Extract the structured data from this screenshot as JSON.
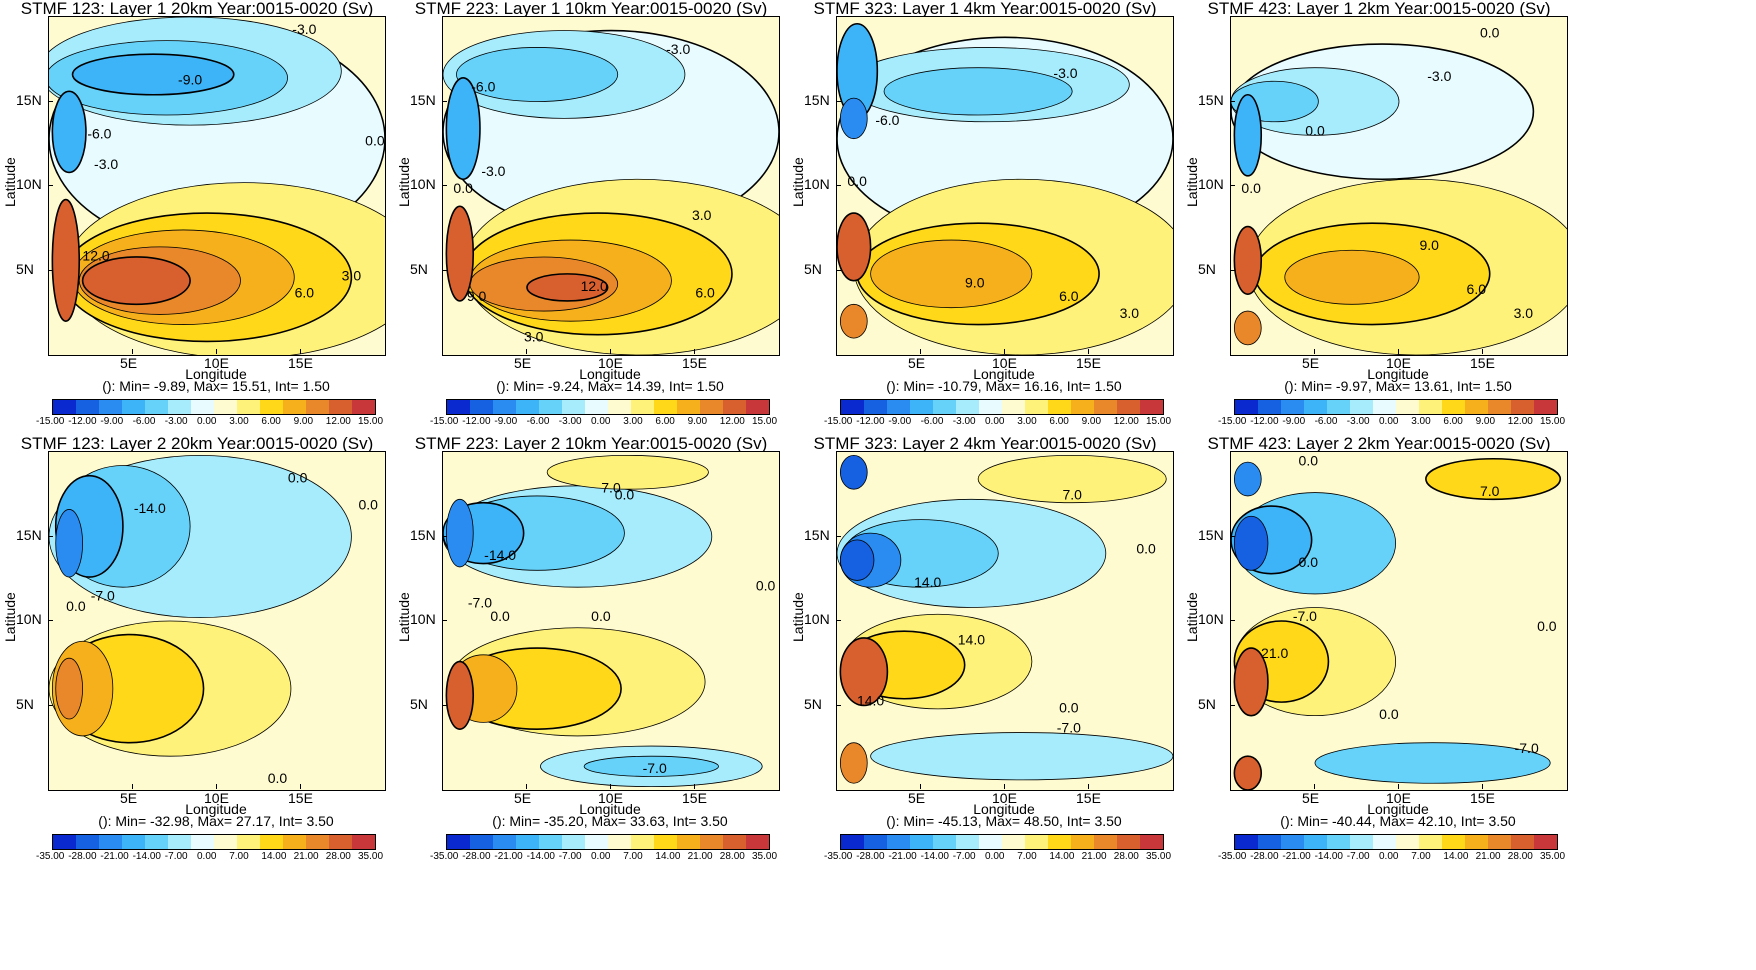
{
  "palette": [
    "#0a2ad0",
    "#1660e2",
    "#2a8cf0",
    "#3eb4f8",
    "#66d2fa",
    "#a6ecfc",
    "#e8fcff",
    "#fffbd0",
    "#fff27a",
    "#ffd81a",
    "#f6b01c",
    "#e8882a",
    "#d8602e",
    "#c8383a"
  ],
  "chart_data": [
    {
      "type": "heatmap",
      "title": "STMF 123: Layer 1 20km Year:0015-0020 (Sv)",
      "xlabel": "Longitude",
      "ylabel": "Latitude",
      "xticks": [
        "5E",
        "10E",
        "15E"
      ],
      "yticks": [
        "15N",
        "10N",
        "5N"
      ],
      "stats": "(): Min= -9.89, Max= 15.51, Int= 1.50",
      "colorbar": [
        "-15.00",
        "-12.00",
        "-9.00",
        "-6.00",
        "-3.00",
        "0.00",
        "3.00",
        "6.00",
        "9.00",
        "12.00",
        "15.00"
      ],
      "contour_labels": [
        "-3.0",
        "-9.0",
        "-6.0",
        "-3.0",
        "12.0",
        "6.0",
        "3.0",
        "0.0"
      ],
      "min": -9.89,
      "max": 15.51,
      "interval": 1.5
    },
    {
      "type": "heatmap",
      "title": "STMF 223: Layer 1 10km Year:0015-0020 (Sv)",
      "xlabel": "Longitude",
      "ylabel": "Latitude",
      "xticks": [
        "5E",
        "10E",
        "15E"
      ],
      "yticks": [
        "15N",
        "10N",
        "5N"
      ],
      "stats": "(): Min= -9.24, Max= 14.39, Int= 1.50",
      "colorbar": [
        "-15.00",
        "-12.00",
        "-9.00",
        "-6.00",
        "-3.00",
        "0.00",
        "3.00",
        "6.00",
        "9.00",
        "12.00",
        "15.00"
      ],
      "contour_labels": [
        "-3.0",
        "-6.0",
        "-3.0",
        "0.0",
        "3.0",
        "12.0",
        "9.0",
        "6.0",
        "3.0"
      ],
      "min": -9.24,
      "max": 14.39,
      "interval": 1.5
    },
    {
      "type": "heatmap",
      "title": "STMF 323: Layer 1 4km Year:0015-0020 (Sv)",
      "xlabel": "Longitude",
      "ylabel": "Latitude",
      "xticks": [
        "5E",
        "10E",
        "15E"
      ],
      "yticks": [
        "15N",
        "10N",
        "5N"
      ],
      "stats": "(): Min= -10.79, Max= 16.16, Int= 1.50",
      "colorbar": [
        "-15.00",
        "-12.00",
        "-9.00",
        "-6.00",
        "-3.00",
        "0.00",
        "3.00",
        "6.00",
        "9.00",
        "12.00",
        "15.00"
      ],
      "contour_labels": [
        "-3.0",
        "-6.0",
        "0.0",
        "9.0",
        "6.0",
        "3.0"
      ],
      "min": -10.79,
      "max": 16.16,
      "interval": 1.5
    },
    {
      "type": "heatmap",
      "title": "STMF 423: Layer 1 2km Year:0015-0020 (Sv)",
      "xlabel": "Longitude",
      "ylabel": "Latitude",
      "xticks": [
        "5E",
        "10E",
        "15E"
      ],
      "yticks": [
        "15N",
        "10N",
        "5N"
      ],
      "stats": "(): Min= -9.97, Max= 13.61, Int= 1.50",
      "colorbar": [
        "-15.00",
        "-12.00",
        "-9.00",
        "-6.00",
        "-3.00",
        "0.00",
        "3.00",
        "6.00",
        "9.00",
        "12.00",
        "15.00"
      ],
      "contour_labels": [
        "0.0",
        "-3.0",
        "0.0",
        "0.0",
        "9.0",
        "6.0",
        "3.0"
      ],
      "min": -9.97,
      "max": 13.61,
      "interval": 1.5
    },
    {
      "type": "heatmap",
      "title": "STMF 123: Layer 2 20km Year:0015-0020 (Sv)",
      "xlabel": "Longitude",
      "ylabel": "Latitude",
      "xticks": [
        "5E",
        "10E",
        "15E"
      ],
      "yticks": [
        "15N",
        "10N",
        "5N"
      ],
      "stats": "(): Min= -32.98, Max= 27.17, Int= 3.50",
      "colorbar": [
        "-35.00",
        "-28.00",
        "-21.00",
        "-14.00",
        "-7.00",
        "0.00",
        "7.00",
        "14.00",
        "21.00",
        "28.00",
        "35.00"
      ],
      "contour_labels": [
        "0.0",
        "-14.0",
        "-7.0",
        "0.0",
        "0.0",
        "0.0"
      ],
      "min": -32.98,
      "max": 27.17,
      "interval": 3.5
    },
    {
      "type": "heatmap",
      "title": "STMF 223: Layer 2 10km Year:0015-0020 (Sv)",
      "xlabel": "Longitude",
      "ylabel": "Latitude",
      "xticks": [
        "5E",
        "10E",
        "15E"
      ],
      "yticks": [
        "15N",
        "10N",
        "5N"
      ],
      "stats": "(): Min= -35.20, Max= 33.63, Int= 3.50",
      "colorbar": [
        "-35.00",
        "-28.00",
        "-21.00",
        "-14.00",
        "-7.00",
        "0.00",
        "7.00",
        "14.00",
        "21.00",
        "28.00",
        "35.00"
      ],
      "contour_labels": [
        "7.0",
        "0.0",
        "-14.0",
        "-7.0",
        "0.0",
        "0.0",
        "0.0",
        "-7.0"
      ],
      "min": -35.2,
      "max": 33.63,
      "interval": 3.5
    },
    {
      "type": "heatmap",
      "title": "STMF 323: Layer 2 4km Year:0015-0020 (Sv)",
      "xlabel": "Longitude",
      "ylabel": "Latitude",
      "xticks": [
        "5E",
        "10E",
        "15E"
      ],
      "yticks": [
        "15N",
        "10N",
        "5N"
      ],
      "stats": "(): Min= -45.13, Max= 48.50, Int= 3.50",
      "colorbar": [
        "-35.00",
        "-28.00",
        "-21.00",
        "-14.00",
        "-7.00",
        "0.00",
        "7.00",
        "14.00",
        "21.00",
        "28.00",
        "35.00"
      ],
      "contour_labels": [
        "7.0",
        "0.0",
        "14.0",
        "14.0",
        "14.0",
        "0.0",
        "-7.0"
      ],
      "min": -45.13,
      "max": 48.5,
      "interval": 3.5
    },
    {
      "type": "heatmap",
      "title": "STMF 423: Layer 2 2km Year:0015-0020 (Sv)",
      "xlabel": "Longitude",
      "ylabel": "Latitude",
      "xticks": [
        "5E",
        "10E",
        "15E"
      ],
      "yticks": [
        "15N",
        "10N",
        "5N"
      ],
      "stats": "(): Min= -40.44, Max= 42.10, Int= 3.50",
      "colorbar": [
        "-35.00",
        "-28.00",
        "-21.00",
        "-14.00",
        "-7.00",
        "0.00",
        "7.00",
        "14.00",
        "21.00",
        "28.00",
        "35.00"
      ],
      "contour_labels": [
        "0.0",
        "7.0",
        "0.0",
        "-7.0",
        "0.0",
        "21.0",
        "0.0",
        "-7.0"
      ],
      "min": -40.44,
      "max": 42.1,
      "interval": 3.5
    }
  ]
}
